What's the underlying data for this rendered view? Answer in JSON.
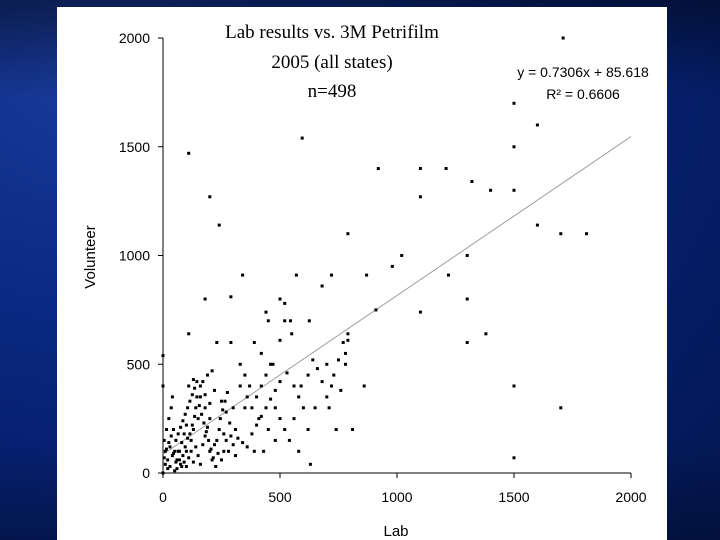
{
  "colors": {
    "accent": "#0b2a85",
    "panel": "#ffffff",
    "marker": "#000000",
    "trendline": "#a0a0a0"
  },
  "chart_data": {
    "type": "scatter",
    "title_lines": [
      "Lab results vs. 3M Petrifilm",
      "2005 (all states)",
      "n=498"
    ],
    "xlabel": "Lab",
    "ylabel": "Volunteer",
    "xlim": [
      0,
      2000
    ],
    "ylim": [
      0,
      2000
    ],
    "xticks": [
      "0",
      "500",
      "1000",
      "1500",
      "2000"
    ],
    "yticks": [
      "0",
      "500",
      "1000",
      "1500",
      "2000"
    ],
    "grid": false,
    "trendline": {
      "equation": "y = 0.7306x + 85.618",
      "r_squared": "R² = 0.6606",
      "slope": 0.7306,
      "intercept": 85.618
    },
    "points": [
      [
        1710,
        2000
      ],
      [
        595,
        1540
      ],
      [
        110,
        1470
      ],
      [
        1500,
        1700
      ],
      [
        1600,
        1600
      ],
      [
        1500,
        1500
      ],
      [
        920,
        1400
      ],
      [
        1100,
        1400
      ],
      [
        1210,
        1400
      ],
      [
        1320,
        1340
      ],
      [
        1400,
        1300
      ],
      [
        1500,
        1300
      ],
      [
        1100,
        1270
      ],
      [
        200,
        1270
      ],
      [
        240,
        1140
      ],
      [
        1600,
        1140
      ],
      [
        1700,
        1100
      ],
      [
        1810,
        1100
      ],
      [
        790,
        1100
      ],
      [
        1020,
        1000
      ],
      [
        1300,
        1000
      ],
      [
        980,
        950
      ],
      [
        1220,
        910
      ],
      [
        570,
        910
      ],
      [
        720,
        910
      ],
      [
        870,
        910
      ],
      [
        340,
        910
      ],
      [
        680,
        860
      ],
      [
        290,
        810
      ],
      [
        500,
        800
      ],
      [
        520,
        780
      ],
      [
        1100,
        740
      ],
      [
        910,
        750
      ],
      [
        1300,
        800
      ],
      [
        180,
        800
      ],
      [
        440,
        740
      ],
      [
        450,
        700
      ],
      [
        520,
        700
      ],
      [
        625,
        700
      ],
      [
        1380,
        640
      ],
      [
        790,
        640
      ],
      [
        110,
        640
      ],
      [
        790,
        610
      ],
      [
        1300,
        600
      ],
      [
        1500,
        400
      ],
      [
        1500,
        70
      ],
      [
        1700,
        300
      ],
      [
        0,
        540
      ],
      [
        500,
        610
      ],
      [
        390,
        600
      ],
      [
        290,
        600
      ],
      [
        230,
        600
      ],
      [
        550,
        640
      ],
      [
        545,
        700
      ],
      [
        770,
        600
      ],
      [
        780,
        550
      ],
      [
        780,
        500
      ],
      [
        700,
        500
      ],
      [
        720,
        400
      ],
      [
        860,
        400
      ],
      [
        810,
        200
      ],
      [
        740,
        200
      ],
      [
        630,
        40
      ],
      [
        580,
        100
      ],
      [
        620,
        200
      ],
      [
        650,
        300
      ],
      [
        590,
        400
      ],
      [
        470,
        500
      ],
      [
        420,
        550
      ],
      [
        330,
        500
      ],
      [
        330,
        400
      ],
      [
        300,
        300
      ],
      [
        350,
        300
      ],
      [
        410,
        250
      ],
      [
        450,
        200
      ],
      [
        480,
        150
      ],
      [
        430,
        100
      ],
      [
        390,
        100
      ],
      [
        280,
        100
      ],
      [
        260,
        100
      ],
      [
        240,
        200
      ],
      [
        200,
        250
      ],
      [
        180,
        300
      ],
      [
        150,
        250
      ],
      [
        130,
        200
      ],
      [
        120,
        150
      ],
      [
        100,
        100
      ],
      [
        90,
        50
      ],
      [
        80,
        30
      ],
      [
        60,
        20
      ],
      [
        50,
        10
      ],
      [
        30,
        30
      ],
      [
        20,
        60
      ],
      [
        10,
        100
      ],
      [
        5,
        150
      ],
      [
        15,
        200
      ],
      [
        25,
        250
      ],
      [
        35,
        300
      ],
      [
        40,
        350
      ],
      [
        0,
        400
      ],
      [
        45,
        200
      ],
      [
        55,
        150
      ],
      [
        65,
        100
      ],
      [
        70,
        60
      ],
      [
        75,
        40
      ],
      [
        85,
        80
      ],
      [
        95,
        120
      ],
      [
        105,
        160
      ],
      [
        115,
        180
      ],
      [
        125,
        220
      ],
      [
        135,
        260
      ],
      [
        140,
        300
      ],
      [
        145,
        350
      ],
      [
        160,
        400
      ],
      [
        170,
        420
      ],
      [
        190,
        450
      ],
      [
        210,
        470
      ],
      [
        220,
        380
      ],
      [
        250,
        330
      ],
      [
        270,
        280
      ],
      [
        285,
        230
      ],
      [
        310,
        200
      ],
      [
        320,
        160
      ],
      [
        340,
        140
      ],
      [
        360,
        120
      ],
      [
        380,
        180
      ],
      [
        400,
        220
      ],
      [
        420,
        260
      ],
      [
        440,
        300
      ],
      [
        460,
        340
      ],
      [
        480,
        380
      ],
      [
        500,
        420
      ],
      [
        530,
        460
      ],
      [
        560,
        400
      ],
      [
        580,
        350
      ],
      [
        600,
        300
      ],
      [
        620,
        450
      ],
      [
        640,
        520
      ],
      [
        660,
        480
      ],
      [
        680,
        420
      ],
      [
        700,
        350
      ],
      [
        710,
        300
      ],
      [
        730,
        450
      ],
      [
        750,
        520
      ],
      [
        760,
        380
      ],
      [
        200,
        100
      ],
      [
        210,
        60
      ],
      [
        220,
        130
      ],
      [
        150,
        80
      ],
      [
        160,
        40
      ],
      [
        170,
        130
      ],
      [
        180,
        170
      ],
      [
        190,
        210
      ],
      [
        230,
        150
      ],
      [
        250,
        60
      ],
      [
        260,
        180
      ],
      [
        300,
        130
      ],
      [
        310,
        80
      ],
      [
        100,
        30
      ],
      [
        110,
        70
      ],
      [
        120,
        100
      ],
      [
        130,
        50
      ],
      [
        140,
        120
      ],
      [
        60,
        60
      ],
      [
        50,
        100
      ],
      [
        40,
        80
      ],
      [
        30,
        120
      ],
      [
        20,
        20
      ],
      [
        10,
        40
      ],
      [
        0,
        0
      ],
      [
        5,
        70
      ],
      [
        15,
        110
      ],
      [
        25,
        140
      ],
      [
        35,
        170
      ],
      [
        45,
        90
      ],
      [
        55,
        50
      ],
      [
        65,
        180
      ],
      [
        75,
        210
      ],
      [
        85,
        240
      ],
      [
        95,
        270
      ],
      [
        105,
        300
      ],
      [
        115,
        330
      ],
      [
        125,
        360
      ],
      [
        135,
        390
      ],
      [
        145,
        420
      ],
      [
        155,
        310
      ],
      [
        165,
        270
      ],
      [
        175,
        230
      ],
      [
        185,
        190
      ],
      [
        195,
        150
      ],
      [
        205,
        110
      ],
      [
        215,
        70
      ],
      [
        225,
        30
      ],
      [
        235,
        90
      ],
      [
        245,
        250
      ],
      [
        255,
        290
      ],
      [
        265,
        330
      ],
      [
        275,
        370
      ],
      [
        350,
        450
      ],
      [
        370,
        400
      ],
      [
        360,
        350
      ],
      [
        380,
        300
      ],
      [
        400,
        350
      ],
      [
        420,
        400
      ],
      [
        440,
        450
      ],
      [
        460,
        500
      ],
      [
        480,
        300
      ],
      [
        500,
        250
      ],
      [
        520,
        200
      ],
      [
        540,
        150
      ],
      [
        560,
        250
      ],
      [
        270,
        150
      ],
      [
        290,
        170
      ],
      [
        110,
        400
      ],
      [
        130,
        430
      ],
      [
        160,
        350
      ],
      [
        180,
        360
      ],
      [
        200,
        320
      ],
      [
        100,
        220
      ],
      [
        90,
        180
      ],
      [
        80,
        140
      ],
      [
        70,
        100
      ]
    ]
  }
}
